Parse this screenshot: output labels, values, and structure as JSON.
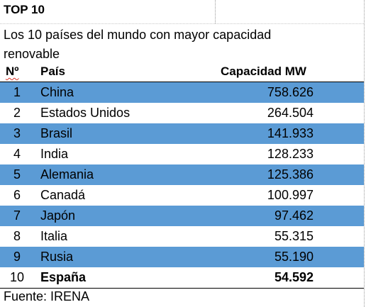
{
  "title": "TOP 10",
  "subtitle": "Los 10 países del mundo con mayor capacidad renovable",
  "table": {
    "headers": {
      "num": "Nº",
      "country": "País",
      "capacity": "Capacidad MW"
    },
    "rows": [
      {
        "num": "1",
        "country": "China",
        "capacity": "758.626"
      },
      {
        "num": "2",
        "country": "Estados Unidos",
        "capacity": "264.504"
      },
      {
        "num": "3",
        "country": "Brasil",
        "capacity": "141.933"
      },
      {
        "num": "4",
        "country": "India",
        "capacity": "128.233"
      },
      {
        "num": "5",
        "country": "Alemania",
        "capacity": "125.386"
      },
      {
        "num": "6",
        "country": "Canadá",
        "capacity": "100.997"
      },
      {
        "num": "7",
        "country": "Japón",
        "capacity": "97.462"
      },
      {
        "num": "8",
        "country": "Italia",
        "capacity": "55.315"
      },
      {
        "num": "9",
        "country": "Rusia",
        "capacity": "55.190"
      },
      {
        "num": "10",
        "country": "España",
        "capacity": "54.592"
      }
    ]
  },
  "footer": "Fuente: IRENA",
  "colors": {
    "band": "#5b9bd5"
  }
}
